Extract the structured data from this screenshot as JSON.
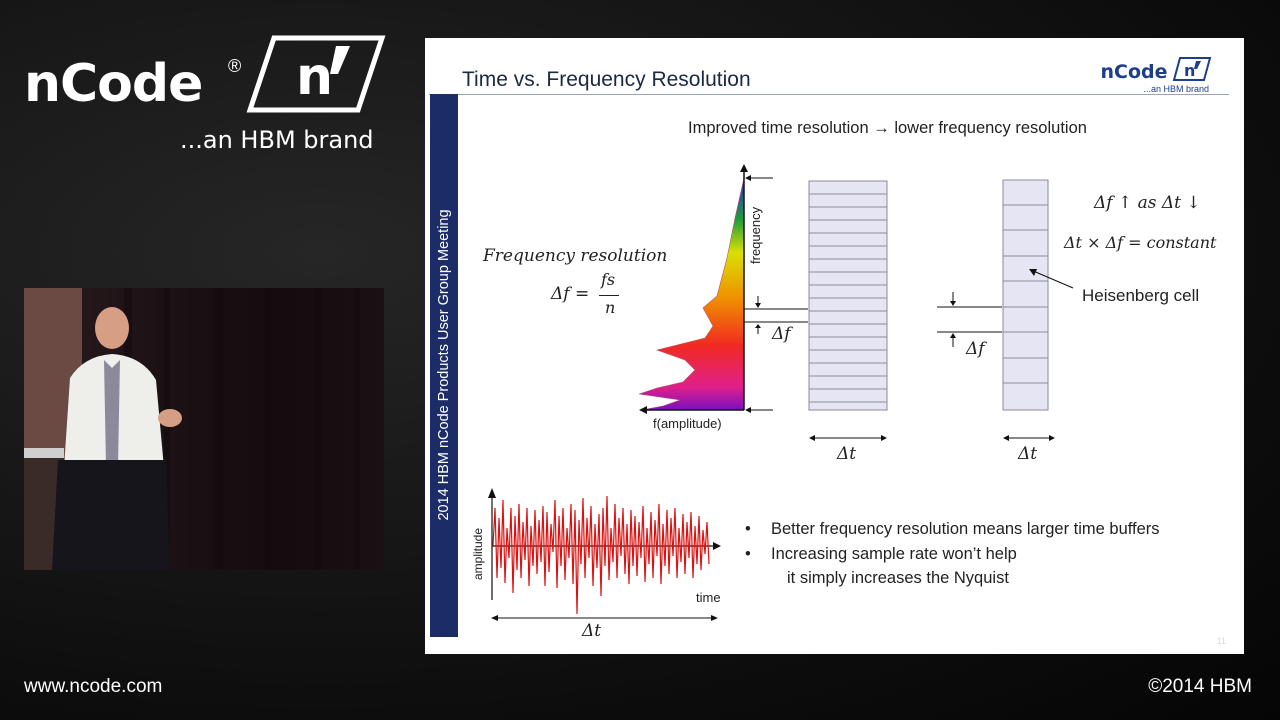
{
  "branding": {
    "name": "nCode",
    "reg_mark": "®",
    "tagline": "...an HBM brand",
    "url": "www.ncode.com",
    "copyright": "©2014 HBM"
  },
  "slide": {
    "title": "Time vs. Frequency Resolution",
    "logo_name": "nCode",
    "logo_tagline": "...an HBM brand",
    "side_label": "2014 HBM nCode Products User Group Meeting",
    "subtitle": "Improved time resolution → lower frequency resolution",
    "freq_res_label": "Frequency resolution",
    "freq_res_lhs": "Δf =",
    "freq_res_num": "fs",
    "freq_res_den": "n",
    "axis_frequency": "frequency",
    "axis_amplitude_fn": "f(amplitude)",
    "delta_f": "Δf",
    "delta_t": "Δt",
    "eq1": "Δf ↑ as Δt ↓",
    "eq2": "Δt × Δf = constant",
    "heisenberg": "Heisenberg cell",
    "signal_ylabel": "amplitude",
    "signal_xlabel": "time",
    "bullets": [
      "Better frequency resolution means larger time buffers",
      "Increasing sample rate won’t help"
    ],
    "bullet_sub": "it simply increases the Nyquist",
    "page_number": "11"
  },
  "colors": {
    "sidebar": "#1c2c66",
    "grid_fill": "#e5e5f3",
    "grid_stroke": "#8a8a9a",
    "signal": "#e01010",
    "logo": "#1f3e8a"
  }
}
